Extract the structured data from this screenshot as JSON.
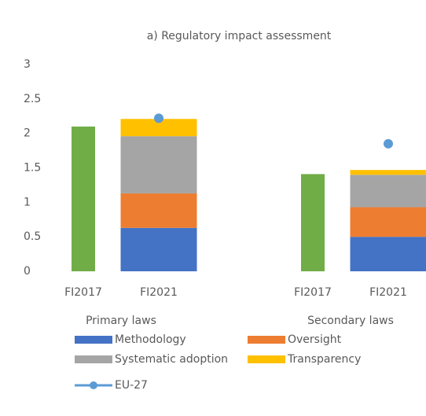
{
  "chart_data": {
    "type": "bar",
    "stacked": true,
    "title": "a) Regulatory impact assessment",
    "categories": [
      "FI2017",
      "FI2021",
      "FI2017",
      "FI2021"
    ],
    "group_labels": [
      "Primary laws",
      "Secondary laws"
    ],
    "series": [
      {
        "color": "#70ad47",
        "values": [
          2.1,
          null,
          1.41,
          null
        ]
      },
      {
        "name": "Methodology",
        "color": "#4472c4",
        "values": [
          null,
          0.63,
          null,
          0.5
        ]
      },
      {
        "name": "Oversight",
        "color": "#ed7d31",
        "values": [
          null,
          0.5,
          null,
          0.43
        ]
      },
      {
        "name": "Systematic adoption",
        "color": "#a5a5a5",
        "values": [
          null,
          0.83,
          null,
          0.47
        ]
      },
      {
        "name": "Transparency",
        "color": "#ffc000",
        "values": [
          null,
          0.25,
          null,
          0.07
        ]
      },
      {
        "name": "EU-27",
        "color": "#5b9bd5",
        "type": "marker",
        "values": [
          null,
          2.22,
          null,
          1.85
        ]
      }
    ],
    "ylim": [
      0,
      3
    ],
    "yticks": [
      0,
      0.5,
      1,
      1.5,
      2,
      2.5,
      3
    ],
    "grid": false
  }
}
